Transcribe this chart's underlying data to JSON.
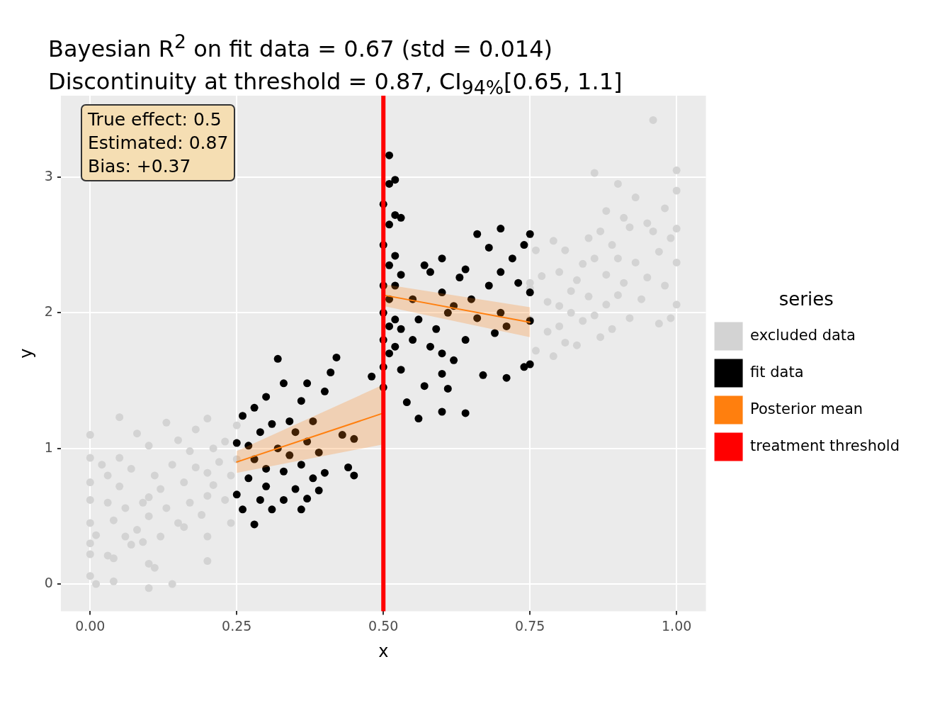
{
  "chart_data": {
    "type": "scatter",
    "title": "Bayesian R$^{2}$ on fit data = 0.67 (std = 0.014)\nDiscontinuity at threshold = 0.87, CI$_{94%}$[0.65, 1.1]",
    "xlabel": "x",
    "ylabel": "y",
    "legend_title": "series",
    "legend": "right",
    "grid": true,
    "xlim": [
      -0.05,
      1.05
    ],
    "xticks": [
      {
        "value": 0,
        "label": "0.00"
      },
      {
        "value": 0.25,
        "label": "0.25"
      },
      {
        "value": 0.5,
        "label": "0.50"
      },
      {
        "value": 0.75,
        "label": "0.75"
      },
      {
        "value": 1,
        "label": "1.00"
      }
    ],
    "ylim": [
      -0.2,
      3.6
    ],
    "yticks": [
      0,
      1,
      2,
      3
    ],
    "annotations": [
      "True effect: 0.5\nEstimated: 0.87\nBias: +0.37"
    ],
    "series": [
      {
        "name": "excluded data",
        "color": "#d3d3d3",
        "x": [
          0,
          0,
          0,
          0,
          0,
          0,
          0,
          0,
          0.01,
          0.01,
          0.02,
          0.03,
          0.03,
          0.03,
          0.04,
          0.04,
          0.04,
          0.05,
          0.05,
          0.05,
          0.06,
          0.06,
          0.07,
          0.07,
          0.08,
          0.08,
          0.09,
          0.09,
          0.1,
          0.1,
          0.1,
          0.1,
          0.1,
          0.11,
          0.11,
          0.12,
          0.12,
          0.13,
          0.13,
          0.14,
          0.14,
          0.15,
          0.15,
          0.16,
          0.16,
          0.17,
          0.17,
          0.18,
          0.18,
          0.19,
          0.2,
          0.2,
          0.2,
          0.2,
          0.2,
          0.21,
          0.21,
          0.22,
          0.23,
          0.23,
          0.24,
          0.24,
          0.25,
          0.25,
          0.75,
          0.75,
          0.75,
          0.76,
          0.76,
          0.77,
          0.78,
          0.78,
          0.79,
          0.79,
          0.8,
          0.8,
          0.8,
          0.81,
          0.81,
          0.82,
          0.82,
          0.83,
          0.83,
          0.84,
          0.84,
          0.85,
          0.85,
          0.86,
          0.86,
          0.86,
          0.87,
          0.87,
          0.88,
          0.88,
          0.88,
          0.89,
          0.89,
          0.9,
          0.9,
          0.9,
          0.91,
          0.91,
          0.92,
          0.92,
          0.93,
          0.93,
          0.94,
          0.95,
          0.95,
          0.96,
          0.96,
          0.97,
          0.97,
          0.98,
          0.98,
          0.99,
          0.99,
          1,
          1,
          1,
          1,
          1
        ],
        "values": [
          1.1,
          0.93,
          0.75,
          0.62,
          0.45,
          0.3,
          0.22,
          0.06,
          0,
          0.36,
          0.88,
          0.8,
          0.6,
          0.21,
          0.02,
          0.19,
          0.47,
          0.93,
          1.23,
          0.72,
          0.56,
          0.35,
          0.85,
          0.29,
          1.11,
          0.4,
          0.6,
          0.31,
          1.02,
          0.64,
          0.5,
          0.15,
          -0.03,
          0.8,
          0.12,
          0.7,
          0.35,
          1.19,
          0.56,
          0.88,
          0,
          0.45,
          1.06,
          0.75,
          0.42,
          0.98,
          0.6,
          1.14,
          0.86,
          0.51,
          1.22,
          0.82,
          0.65,
          0.35,
          0.17,
          1,
          0.73,
          0.9,
          1.05,
          0.62,
          0.8,
          0.45,
          1.17,
          0.92,
          2.22,
          1.95,
          2.18,
          1.72,
          2.46,
          2.27,
          1.86,
          2.08,
          2.53,
          1.68,
          2.3,
          2.05,
          1.9,
          2.46,
          1.78,
          2.16,
          2,
          2.24,
          1.76,
          2.36,
          1.94,
          2.55,
          2.12,
          3.03,
          2.4,
          1.98,
          2.6,
          1.82,
          2.75,
          2.28,
          2.06,
          2.5,
          1.88,
          2.95,
          2.4,
          2.13,
          2.7,
          2.22,
          2.63,
          1.96,
          2.85,
          2.37,
          2.1,
          2.66,
          2.26,
          3.42,
          2.6,
          2.45,
          1.92,
          2.77,
          2.2,
          2.55,
          1.96,
          3.05,
          2.9,
          2.62,
          2.37,
          2.06
        ]
      },
      {
        "name": "fit data",
        "color": "#000000",
        "x": [
          0.25,
          0.25,
          0.26,
          0.26,
          0.27,
          0.27,
          0.28,
          0.28,
          0.28,
          0.29,
          0.29,
          0.3,
          0.3,
          0.3,
          0.31,
          0.31,
          0.32,
          0.32,
          0.33,
          0.33,
          0.33,
          0.34,
          0.34,
          0.35,
          0.35,
          0.36,
          0.36,
          0.36,
          0.37,
          0.37,
          0.37,
          0.38,
          0.38,
          0.39,
          0.39,
          0.4,
          0.4,
          0.41,
          0.42,
          0.43,
          0.44,
          0.45,
          0.45,
          0.48,
          0.5,
          0.5,
          0.5,
          0.5,
          0.5,
          0.5,
          0.5,
          0.51,
          0.51,
          0.51,
          0.51,
          0.51,
          0.51,
          0.51,
          0.52,
          0.52,
          0.52,
          0.52,
          0.52,
          0.52,
          0.53,
          0.53,
          0.53,
          0.53,
          0.54,
          0.55,
          0.55,
          0.56,
          0.56,
          0.57,
          0.57,
          0.58,
          0.58,
          0.59,
          0.6,
          0.6,
          0.6,
          0.6,
          0.6,
          0.61,
          0.61,
          0.62,
          0.62,
          0.63,
          0.64,
          0.64,
          0.64,
          0.65,
          0.66,
          0.66,
          0.67,
          0.68,
          0.68,
          0.69,
          0.7,
          0.7,
          0.7,
          0.71,
          0.71,
          0.72,
          0.73,
          0.74,
          0.74,
          0.75,
          0.75,
          0.75,
          0.75
        ],
        "values": [
          0.66,
          1.04,
          1.24,
          0.55,
          1.02,
          0.78,
          0.44,
          1.3,
          0.92,
          1.12,
          0.62,
          1.38,
          0.85,
          0.72,
          1.18,
          0.55,
          1.66,
          1,
          1.48,
          0.83,
          0.62,
          1.2,
          0.95,
          1.12,
          0.7,
          1.35,
          0.88,
          0.55,
          1.48,
          1.05,
          0.63,
          1.2,
          0.78,
          0.97,
          0.69,
          1.42,
          0.82,
          1.56,
          1.67,
          1.1,
          0.86,
          0.8,
          1.07,
          1.53,
          2.8,
          2.5,
          2.2,
          2,
          1.8,
          1.6,
          1.45,
          3.16,
          2.95,
          2.65,
          2.35,
          2.1,
          1.9,
          1.7,
          2.98,
          2.72,
          2.42,
          2.2,
          1.95,
          1.75,
          2.7,
          2.28,
          1.88,
          1.58,
          1.34,
          2.1,
          1.8,
          1.22,
          1.95,
          2.35,
          1.46,
          2.3,
          1.75,
          1.88,
          2.4,
          2.15,
          1.7,
          1.55,
          1.27,
          2,
          1.44,
          2.05,
          1.65,
          2.26,
          1.26,
          2.32,
          1.8,
          2.1,
          1.96,
          2.58,
          1.54,
          2.48,
          2.2,
          1.85,
          2.62,
          2.3,
          2,
          1.9,
          1.52,
          2.4,
          2.22,
          2.5,
          1.6,
          2.58,
          2.15,
          1.94,
          1.62
        ]
      },
      {
        "name": "Posterior mean",
        "type": "line",
        "color": "#ff7f0e",
        "x": [
          0.25,
          0.5
        ],
        "values": [
          0.9,
          1.26
        ],
        "lower": [
          0.82,
          1.03
        ],
        "upper": [
          0.98,
          1.47
        ]
      },
      {
        "type": "line",
        "color": "#ff7f0e",
        "x": [
          0.5,
          0.75
        ],
        "values": [
          2.13,
          1.93
        ],
        "lower": [
          2.05,
          1.82
        ],
        "upper": [
          2.21,
          2.04
        ]
      },
      {
        "name": "treatment threshold",
        "type": "line",
        "color": "#ff0000",
        "x": [
          0.5,
          0.5
        ],
        "values": [
          -0.2,
          3.6
        ]
      }
    ]
  }
}
